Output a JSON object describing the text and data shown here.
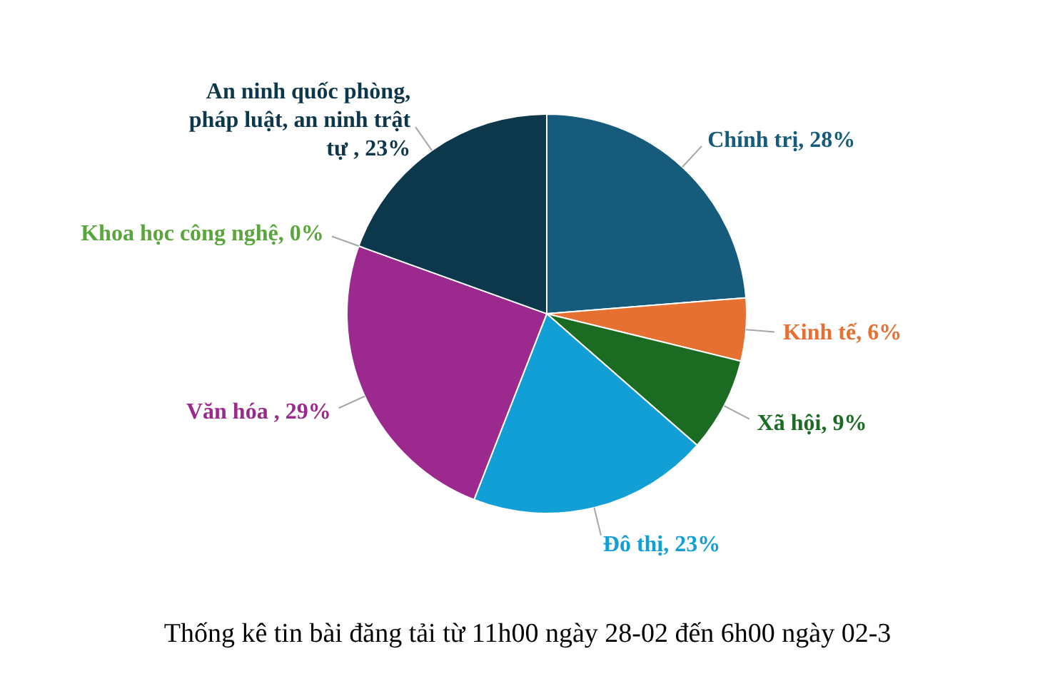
{
  "chart_data": {
    "type": "pie",
    "title": "Thống kê tin bài đăng tải từ 11h00 ngày 28-02 đến 6h00 ngày 02-3",
    "categories": [
      "Chính trị",
      "Kinh tế",
      "Xã hội",
      "Đô thị",
      "Văn hóa ",
      "Khoa học công nghệ",
      "An ninh quốc phòng, pháp luật, an ninh trật tự "
    ],
    "values": [
      28,
      6,
      9,
      23,
      29,
      0,
      23
    ],
    "colors": [
      "#165b7b",
      "#e57032",
      "#1b6b23",
      "#119fd6",
      "#9c2a8e",
      "#5aa63c",
      "#0d374a"
    ],
    "value_labels": [
      "28%",
      "6%",
      "9%",
      "23%",
      "29%",
      "0%",
      "23%"
    ]
  }
}
